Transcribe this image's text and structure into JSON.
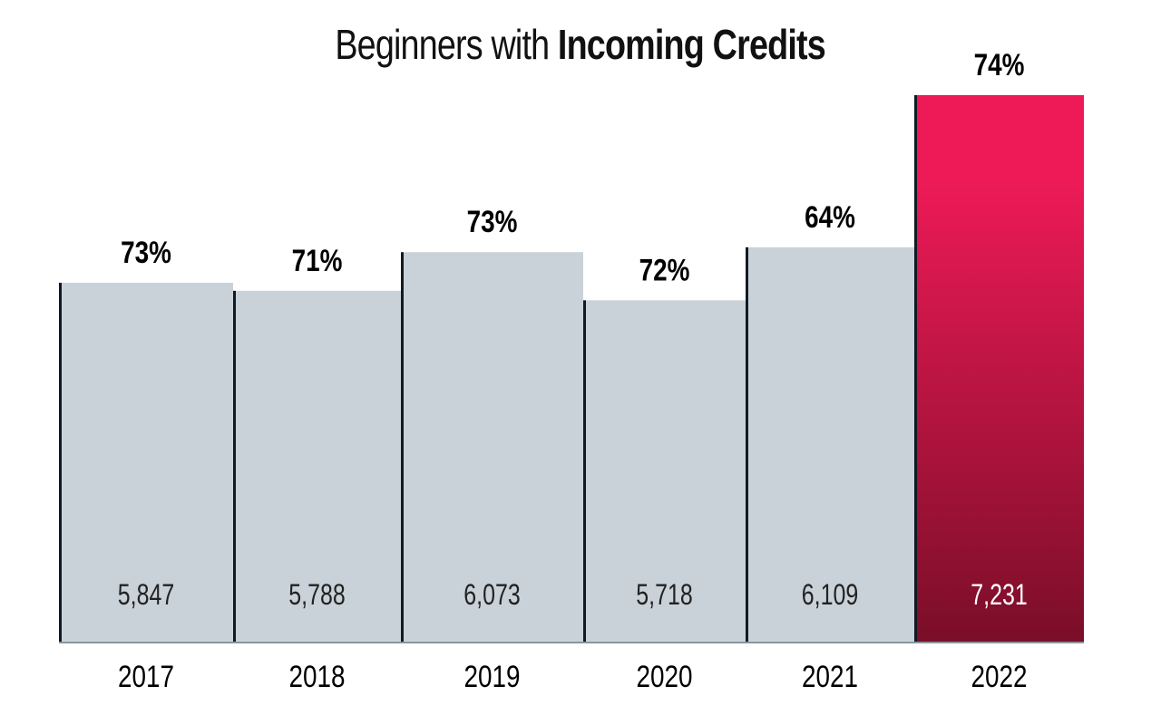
{
  "chart_data": {
    "type": "bar",
    "title_light": "Beginners with",
    "title_bold": "Incoming Credits",
    "categories": [
      "2017",
      "2018",
      "2019",
      "2020",
      "2021",
      "2022"
    ],
    "values": [
      5847,
      5788,
      6073,
      5718,
      6109,
      7231
    ],
    "value_labels": [
      "5,847",
      "5,788",
      "6,073",
      "5,718",
      "6,109",
      "7,231"
    ],
    "percent_labels": [
      "73%",
      "71%",
      "73%",
      "72%",
      "64%",
      "74%"
    ],
    "highlight_index": 5,
    "ylim": [
      3200,
      7231
    ],
    "xlabel": "",
    "ylabel": "",
    "grid": false,
    "colors": {
      "bar": "#c9d2d8",
      "highlight_top": "#ee1a58",
      "highlight_bottom": "#7a0e28",
      "edge": "#111a24"
    }
  }
}
